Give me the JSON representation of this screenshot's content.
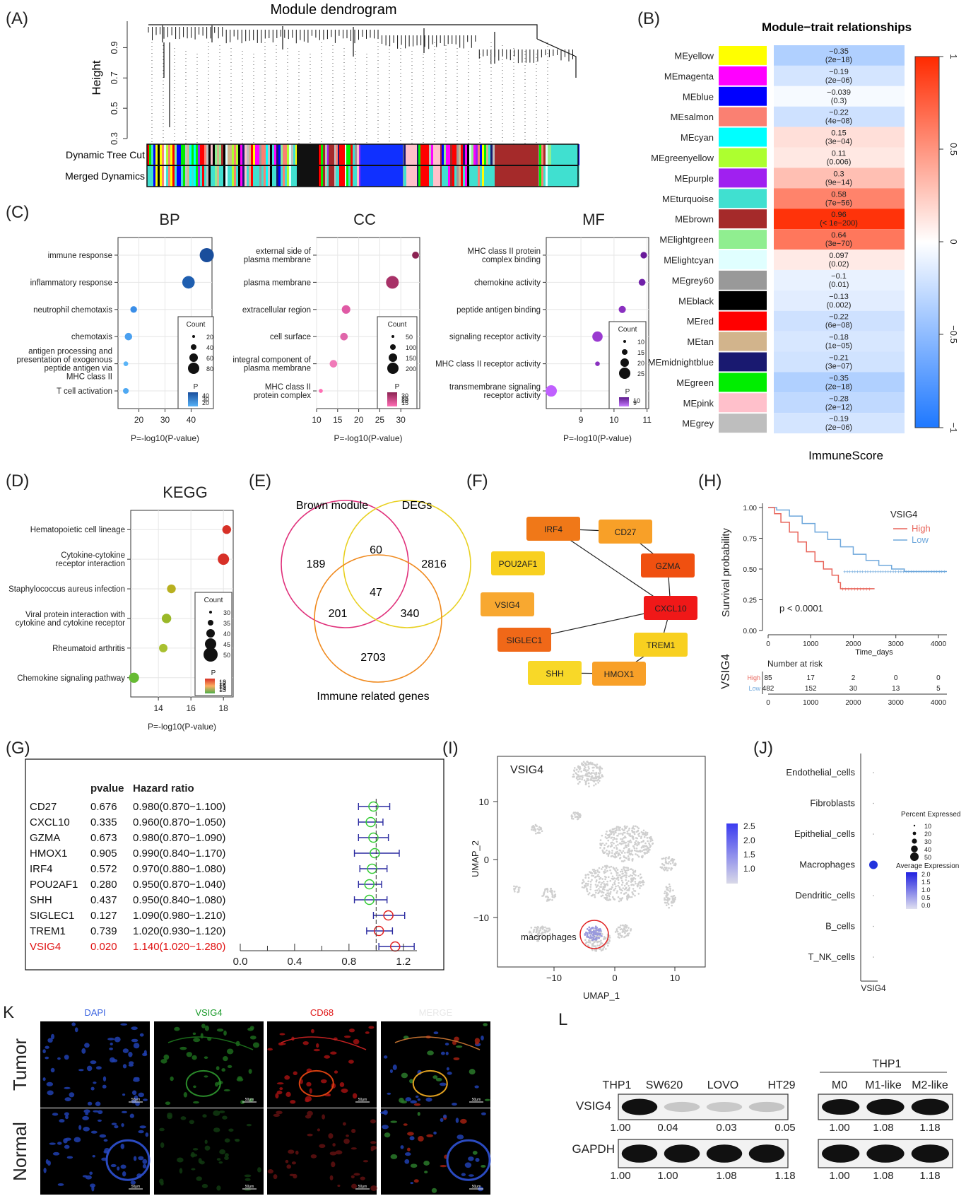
{
  "panel_labels": {
    "A": "(A)",
    "B": "(B)",
    "C": "(C)",
    "D": "(D)",
    "E": "(E)",
    "F": "(F)",
    "G": "(G)",
    "H": "(H)",
    "I": "(I)",
    "J": "(J)",
    "K": "K",
    "L": "L"
  },
  "panelA": {
    "title": "Module dendrogram",
    "ylabel": "Height",
    "yticks": [
      "0.3",
      "0.5",
      "0.7",
      "0.9"
    ],
    "row_labels": [
      "Dynamic Tree Cut",
      "Merged Dynamics"
    ]
  },
  "panelB": {
    "title": "Module−trait relationships",
    "xlabel": "ImmuneScore",
    "colorbar_ticks": [
      "1",
      "0.5",
      "0",
      "−0.5",
      "−1"
    ],
    "modules": [
      {
        "name": "MEyellow",
        "color": "#ffff00",
        "r": "−0.35",
        "p": "(2e−18)",
        "v": -0.35
      },
      {
        "name": "MEmagenta",
        "color": "#ff00ff",
        "r": "−0.19",
        "p": "(2e−06)",
        "v": -0.19
      },
      {
        "name": "MEblue",
        "color": "#0000ff",
        "r": "−0.039",
        "p": "(0.3)",
        "v": -0.039
      },
      {
        "name": "MEsalmon",
        "color": "#fa8072",
        "r": "−0.22",
        "p": "(4e−08)",
        "v": -0.22
      },
      {
        "name": "MEcyan",
        "color": "#00ffff",
        "r": "0.15",
        "p": "(3e−04)",
        "v": 0.15
      },
      {
        "name": "MEgreenyellow",
        "color": "#adff2f",
        "r": "0.11",
        "p": "(0.006)",
        "v": 0.11
      },
      {
        "name": "MEpurple",
        "color": "#a020f0",
        "r": "0.3",
        "p": "(9e−14)",
        "v": 0.3
      },
      {
        "name": "MEturquoise",
        "color": "#40e0d0",
        "r": "0.58",
        "p": "(7e−56)",
        "v": 0.58
      },
      {
        "name": "MEbrown",
        "color": "#a52a2a",
        "r": "0.96",
        "p": "(< 1e−200)",
        "v": 0.96
      },
      {
        "name": "MElightgreen",
        "color": "#90ee90",
        "r": "0.64",
        "p": "(3e−70)",
        "v": 0.64
      },
      {
        "name": "MElightcyan",
        "color": "#e0ffff",
        "r": "0.097",
        "p": "(0.02)",
        "v": 0.097
      },
      {
        "name": "MEgrey60",
        "color": "#999999",
        "r": "−0.1",
        "p": "(0.01)",
        "v": -0.1
      },
      {
        "name": "MEblack",
        "color": "#000000",
        "r": "−0.13",
        "p": "(0.002)",
        "v": -0.13
      },
      {
        "name": "MEred",
        "color": "#ff0000",
        "r": "−0.22",
        "p": "(6e−08)",
        "v": -0.22
      },
      {
        "name": "MEtan",
        "color": "#d2b48c",
        "r": "−0.18",
        "p": "(1e−05)",
        "v": -0.18
      },
      {
        "name": "MEmidnightblue",
        "color": "#191970",
        "r": "−0.21",
        "p": "(3e−07)",
        "v": -0.21
      },
      {
        "name": "MEgreen",
        "color": "#00ee00",
        "r": "−0.35",
        "p": "(2e−18)",
        "v": -0.35
      },
      {
        "name": "MEpink",
        "color": "#ffc0cb",
        "r": "−0.28",
        "p": "(2e−12)",
        "v": -0.28
      },
      {
        "name": "MEgrey",
        "color": "#bebebe",
        "r": "−0.19",
        "p": "(2e−06)",
        "v": -0.19
      }
    ]
  },
  "panelC": {
    "xlabel": "P=-log10(P-value)",
    "legend_count": "Count",
    "legend_p": "P",
    "BP": {
      "title": "BP",
      "terms": [
        "immune response",
        "inflammatory response",
        "neutrophil chemotaxis",
        "chemotaxis",
        "antigen processing and\npresentation of exogenous\npeptide antigen via\nMHC class II",
        "T cell activation"
      ],
      "x": [
        46,
        39,
        18,
        16,
        15,
        15
      ],
      "count": [
        90,
        70,
        20,
        25,
        10,
        15
      ],
      "xticks": [
        "20",
        "30",
        "40"
      ],
      "count_ticks": [
        "20",
        "40",
        "60",
        "80"
      ],
      "p_ticks": [
        "40",
        "30",
        "20"
      ]
    },
    "CC": {
      "title": "CC",
      "terms": [
        "external side of\nplasma membrane",
        "plasma membrane",
        "extracellular region",
        "cell surface",
        "integral component of\nplasma membrane",
        "MHC class II\nprotein complex"
      ],
      "x": [
        33.5,
        28,
        17,
        16.5,
        14,
        11
      ],
      "count": [
        60,
        200,
        90,
        70,
        70,
        20
      ],
      "xticks": [
        "10",
        "15",
        "20",
        "25",
        "30"
      ],
      "count_ticks": [
        "50",
        "100",
        "150",
        "200"
      ],
      "p_ticks": [
        "30",
        "25",
        "20",
        "15"
      ]
    },
    "MF": {
      "title": "MF",
      "terms": [
        "MHC class II protein\ncomplex binding",
        "chemokine activity",
        "peptide antigen binding",
        "signaling receptor activity",
        "MHC class II receptor activity",
        "transmembrane signaling\nreceptor activity"
      ],
      "x": [
        10.9,
        10.85,
        10.25,
        9.5,
        9.5,
        8.1
      ],
      "count": [
        10,
        11,
        12,
        25,
        5,
        30
      ],
      "xticks": [
        "9",
        "10",
        "11"
      ],
      "count_ticks": [
        "10",
        "15",
        "20",
        "25"
      ],
      "p_ticks": [
        "10",
        "9"
      ]
    }
  },
  "panelD": {
    "title": "KEGG",
    "xlabel": "P=-log10(P-value)",
    "terms": [
      "Hematopoietic cell lineage",
      "Cytokine-cytokine\nreceptor interaction",
      "Staphylococcus aureus infection",
      "Viral protein interaction with\ncytokine and cytokine receptor",
      "Rheumatoid arthritis",
      "Chemokine signaling pathway"
    ],
    "x": [
      18.2,
      18,
      14.8,
      14.5,
      14.3,
      12.5
    ],
    "count": [
      30,
      50,
      30,
      35,
      28,
      40
    ],
    "xticks": [
      "14",
      "16",
      "18"
    ],
    "legend_count": "Count",
    "count_ticks": [
      "30",
      "35",
      "40",
      "45",
      "50"
    ],
    "legend_p": "P",
    "p_ticks": [
      "18",
      "17",
      "16",
      "15",
      "14",
      "13"
    ]
  },
  "panelE": {
    "labels": [
      "Brown module",
      "DEGs",
      "Immune related genes"
    ],
    "counts": [
      "189",
      "60",
      "2816",
      "47",
      "201",
      "340",
      "2703"
    ]
  },
  "panelF": {
    "nodes": [
      "IRF4",
      "CD27",
      "POU2AF1",
      "GZMA",
      "VSIG4",
      "CXCL10",
      "SIGLEC1",
      "TREM1",
      "SHH",
      "HMOX1"
    ]
  },
  "panelG": {
    "headers": [
      "pvalue",
      "Hazard ratio"
    ],
    "rows": [
      {
        "gene": "CD27",
        "p": "0.676",
        "hr": "0.980(0.870−1.100)",
        "est": 0.98,
        "lo": 0.87,
        "hi": 1.1
      },
      {
        "gene": "CXCL10",
        "p": "0.335",
        "hr": "0.960(0.870−1.050)",
        "est": 0.96,
        "lo": 0.87,
        "hi": 1.05
      },
      {
        "gene": "GZMA",
        "p": "0.673",
        "hr": "0.980(0.870−1.090)",
        "est": 0.98,
        "lo": 0.87,
        "hi": 1.09
      },
      {
        "gene": "HMOX1",
        "p": "0.905",
        "hr": "0.990(0.840−1.170)",
        "est": 0.99,
        "lo": 0.84,
        "hi": 1.17
      },
      {
        "gene": "IRF4",
        "p": "0.572",
        "hr": "0.970(0.880−1.080)",
        "est": 0.97,
        "lo": 0.88,
        "hi": 1.08
      },
      {
        "gene": "POU2AF1",
        "p": "0.280",
        "hr": "0.950(0.870−1.040)",
        "est": 0.95,
        "lo": 0.87,
        "hi": 1.04
      },
      {
        "gene": "SHH",
        "p": "0.437",
        "hr": "0.950(0.840−1.080)",
        "est": 0.95,
        "lo": 0.84,
        "hi": 1.08
      },
      {
        "gene": "SIGLEC1",
        "p": "0.127",
        "hr": "1.090(0.980−1.210)",
        "est": 1.09,
        "lo": 0.98,
        "hi": 1.21
      },
      {
        "gene": "TREM1",
        "p": "0.739",
        "hr": "1.020(0.930−1.120)",
        "est": 1.02,
        "lo": 0.93,
        "hi": 1.12
      },
      {
        "gene": "VSIG4",
        "p": "0.020",
        "hr": "1.140(1.020−1.280)",
        "est": 1.14,
        "lo": 1.02,
        "hi": 1.28
      }
    ],
    "xticks": [
      "0.0",
      "0.4",
      "0.8",
      "1.2"
    ]
  },
  "panelH": {
    "ylabel": "Survival probability",
    "xlabel": "Time_days",
    "legend_title": "VSIG4",
    "groups": [
      "High",
      "Low"
    ],
    "pvalue": "p < 0.0001",
    "yticks": [
      "1.00",
      "0.75",
      "0.50",
      "0.25",
      "0.00"
    ],
    "xticks": [
      "0",
      "1000",
      "2000",
      "3000",
      "4000"
    ],
    "risk_title": "Number at risk",
    "risk_side": "VSIG4",
    "risk_high": [
      "85",
      "17",
      "2",
      "0",
      "0"
    ],
    "risk_low": [
      "482",
      "152",
      "30",
      "13",
      "5"
    ]
  },
  "panelI": {
    "title": "VSIG4",
    "xlabel": "UMAP_1",
    "ylabel": "UMAP_2",
    "annotation": "macrophages",
    "xticks": [
      "−10",
      "0",
      "10"
    ],
    "yticks": [
      "10",
      "0",
      "−10"
    ],
    "cbar_ticks": [
      "2.5",
      "2.0",
      "1.5",
      "1.0"
    ]
  },
  "panelJ": {
    "cells": [
      "Endothelial_cells",
      "Fibroblasts",
      "Epithelial_cells",
      "Macrophages",
      "Dendritic_cells",
      "B_cells",
      "T_NK_cells"
    ],
    "xlabel": "VSIG4",
    "legend_pct": "Percent Expressed",
    "pct_ticks": [
      "10",
      "20",
      "30",
      "40",
      "50"
    ],
    "legend_avg": "Average Expression",
    "avg_ticks": [
      "2.0",
      "1.5",
      "1.0",
      "0.5",
      "0.0"
    ]
  },
  "panelK": {
    "columns": [
      "DAPI",
      "VSIG4",
      "CD68",
      "MERGE"
    ],
    "rows": [
      "Tumor",
      "Normal"
    ],
    "scalebar": "50μm"
  },
  "panelL": {
    "lanes1": [
      "THP1",
      "SW620",
      "LOVO",
      "HT29"
    ],
    "group2": "THP1",
    "lanes2": [
      "M0",
      "M1-like",
      "M2-like"
    ],
    "proteins": [
      "VSIG4",
      "GAPDH"
    ],
    "vsig4_vals1": [
      "1.00",
      "0.04",
      "0.03",
      "0.05"
    ],
    "gapdh_vals1": [
      "1.00",
      "1.00",
      "1.08",
      "1.18"
    ],
    "vsig4_vals2": [
      "1.00",
      "1.08",
      "1.18"
    ],
    "gapdh_vals2": [
      "1.00",
      "1.08",
      "1.18"
    ]
  }
}
